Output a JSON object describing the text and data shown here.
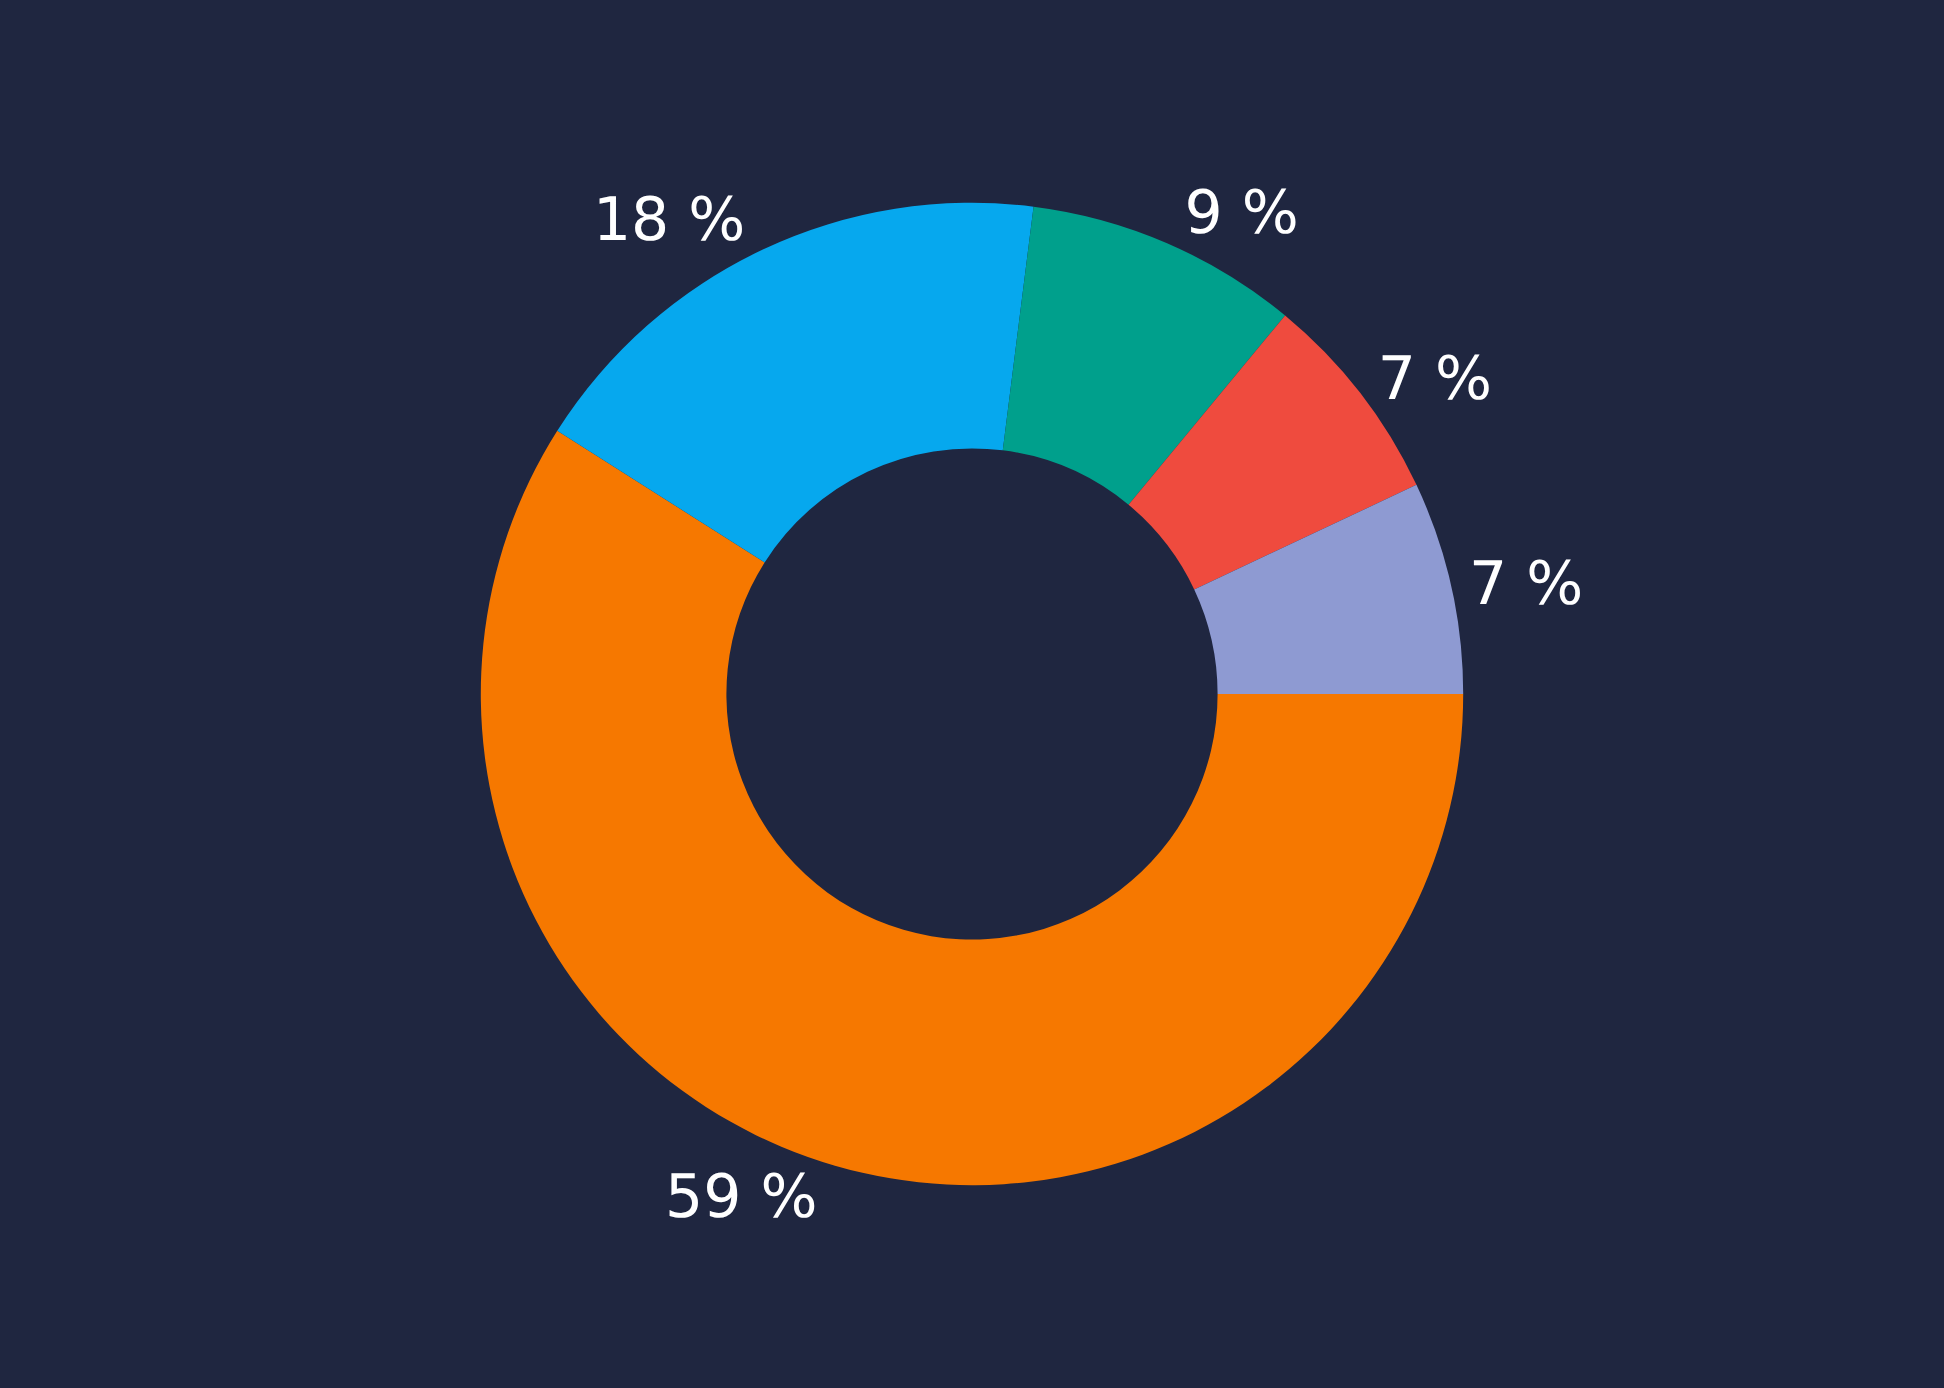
{
  "chart_data": {
    "type": "donut",
    "categories": [
      null,
      null,
      null,
      null,
      null
    ],
    "values": [
      59,
      18,
      9,
      7,
      7
    ],
    "colors": [
      "#f67800",
      "#06a8ee",
      "#00a08c",
      "#ef4b3e",
      "#8e9ad2"
    ],
    "value_labels": [
      "59 %",
      "18 %",
      "9 %",
      "7 %",
      "7 %"
    ]
  }
}
